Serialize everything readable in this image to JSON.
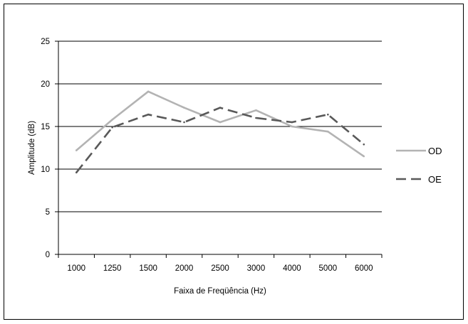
{
  "chart_data": {
    "type": "line",
    "title": "",
    "xlabel": "Faixa de Freqüência (Hz)",
    "ylabel": "Amplitude (dB)",
    "categories": [
      "1000",
      "1250",
      "1500",
      "2000",
      "2500",
      "3000",
      "4000",
      "5000",
      "6000"
    ],
    "ylim": [
      0,
      25
    ],
    "yticks": [
      "0",
      "5",
      "10",
      "15",
      "20",
      "25"
    ],
    "grid": "horizontal",
    "legend_position": "right",
    "series": [
      {
        "name": "OD",
        "values": [
          12.2,
          15.8,
          19.1,
          17.2,
          15.5,
          16.9,
          15.0,
          14.4,
          11.5
        ],
        "color": "#b3b3b3",
        "dash": "solid"
      },
      {
        "name": "OE",
        "values": [
          9.6,
          14.9,
          16.4,
          15.5,
          17.2,
          16.0,
          15.5,
          16.4,
          12.9
        ],
        "color": "#595959",
        "dash": "dashed"
      }
    ]
  }
}
